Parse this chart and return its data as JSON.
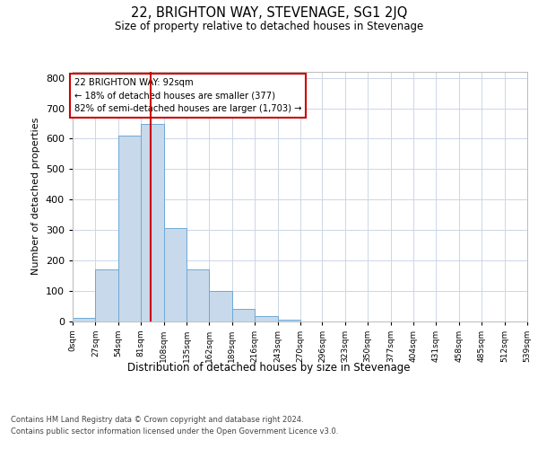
{
  "title": "22, BRIGHTON WAY, STEVENAGE, SG1 2JQ",
  "subtitle": "Size of property relative to detached houses in Stevenage",
  "xlabel": "Distribution of detached houses by size in Stevenage",
  "ylabel": "Number of detached properties",
  "bin_edges": [
    0,
    27,
    54,
    81,
    108,
    135,
    162,
    189,
    216,
    243,
    270,
    296,
    323,
    350,
    377,
    404,
    431,
    458,
    485,
    512,
    539
  ],
  "bar_heights": [
    10,
    170,
    610,
    650,
    305,
    170,
    100,
    40,
    15,
    5,
    0,
    0,
    0,
    0,
    0,
    0,
    0,
    0,
    0,
    0
  ],
  "bar_color": "#c9d9ec",
  "bar_edge_color": "#6fa8d6",
  "vline_color": "#cc0000",
  "vline_x": 92,
  "annotation_line1": "22 BRIGHTON WAY: 92sqm",
  "annotation_line2": "← 18% of detached houses are smaller (377)",
  "annotation_line3": "82% of semi-detached houses are larger (1,703) →",
  "annotation_box_edge": "#cc0000",
  "ylim": [
    0,
    820
  ],
  "yticks": [
    0,
    100,
    200,
    300,
    400,
    500,
    600,
    700,
    800
  ],
  "tick_labels": [
    "0sqm",
    "27sqm",
    "54sqm",
    "81sqm",
    "108sqm",
    "135sqm",
    "162sqm",
    "189sqm",
    "216sqm",
    "243sqm",
    "270sqm",
    "296sqm",
    "323sqm",
    "350sqm",
    "377sqm",
    "404sqm",
    "431sqm",
    "458sqm",
    "485sqm",
    "512sqm",
    "539sqm"
  ],
  "footer_line1": "Contains HM Land Registry data © Crown copyright and database right 2024.",
  "footer_line2": "Contains public sector information licensed under the Open Government Licence v3.0.",
  "background_color": "#ffffff",
  "grid_color": "#ccd6e8"
}
